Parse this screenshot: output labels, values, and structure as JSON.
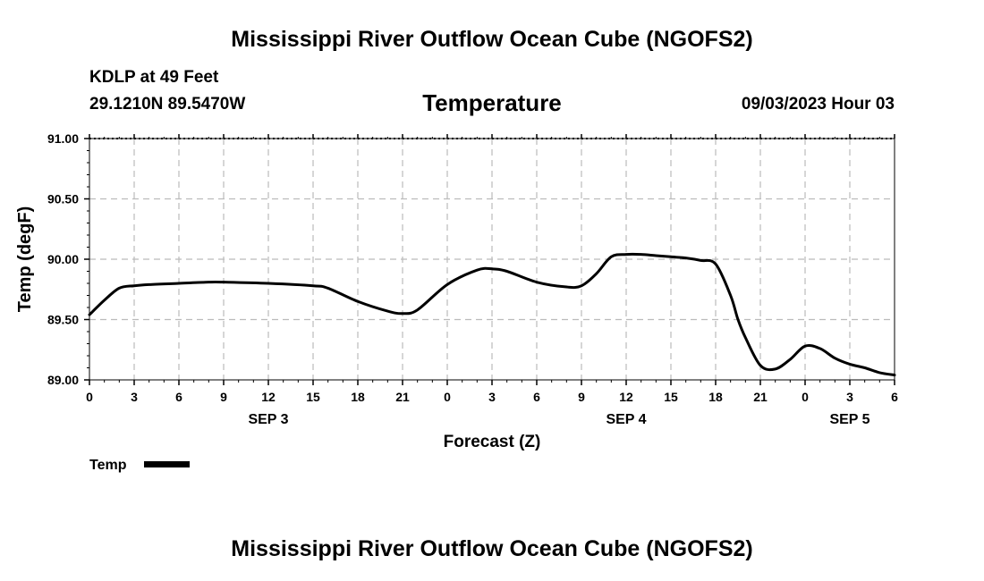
{
  "header": {
    "title": "Mississippi River Outflow Ocean Cube (NGOFS2)",
    "station": "KDLP at 49 Feet",
    "coords": "29.1210N  89.5470W",
    "variable": "Temperature",
    "datetime": "09/03/2023 Hour 03"
  },
  "legend": {
    "label": "Temp"
  },
  "footer": {
    "title": "Mississippi River Outflow Ocean Cube (NGOFS2)"
  },
  "chart_data": {
    "type": "line",
    "title": "Temperature",
    "xlabel": "Forecast (Z)",
    "ylabel": "Temp (degF)",
    "xlim": [
      0,
      54
    ],
    "ylim": [
      89.0,
      91.0
    ],
    "y_ticks": [
      89.0,
      89.5,
      90.0,
      90.5,
      91.0
    ],
    "y_tick_labels": [
      "89.00",
      "89.50",
      "90.00",
      "90.50",
      "91.00"
    ],
    "x_ticks": [
      0,
      3,
      6,
      9,
      12,
      15,
      18,
      21,
      24,
      27,
      30,
      33,
      36,
      39,
      42,
      45,
      48,
      51,
      54
    ],
    "x_tick_labels": [
      "0",
      "3",
      "6",
      "9",
      "12",
      "15",
      "18",
      "21",
      "0",
      "3",
      "6",
      "9",
      "12",
      "15",
      "18",
      "21",
      "0",
      "3",
      "6"
    ],
    "day_labels": [
      {
        "label": "SEP 3",
        "x": 12
      },
      {
        "label": "SEP 4",
        "x": 36
      },
      {
        "label": "SEP 5",
        "x": 51
      }
    ],
    "grid": true,
    "legend": "bottom-left",
    "series": [
      {
        "name": "Temp",
        "x": [
          0,
          1,
          2,
          3,
          4,
          6,
          8,
          9,
          12,
          15,
          16,
          18,
          20,
          21,
          22,
          24,
          26,
          27,
          28,
          30,
          32,
          33,
          34,
          35,
          36,
          37,
          38,
          39,
          40,
          41,
          42,
          43,
          43.5,
          44,
          45,
          46,
          47,
          48,
          49,
          50,
          51,
          52,
          53,
          54
        ],
        "values": [
          89.54,
          89.66,
          89.76,
          89.78,
          89.79,
          89.8,
          89.81,
          89.81,
          89.8,
          89.78,
          89.76,
          89.65,
          89.57,
          89.55,
          89.58,
          89.79,
          89.91,
          89.92,
          89.9,
          89.81,
          89.77,
          89.78,
          89.88,
          90.02,
          90.04,
          90.04,
          90.03,
          90.02,
          90.01,
          89.99,
          89.96,
          89.7,
          89.5,
          89.35,
          89.12,
          89.09,
          89.17,
          89.28,
          89.26,
          89.18,
          89.13,
          89.1,
          89.06,
          89.04
        ]
      }
    ]
  },
  "colors": {
    "line": "#000000",
    "grid": "#bbbbbb"
  }
}
